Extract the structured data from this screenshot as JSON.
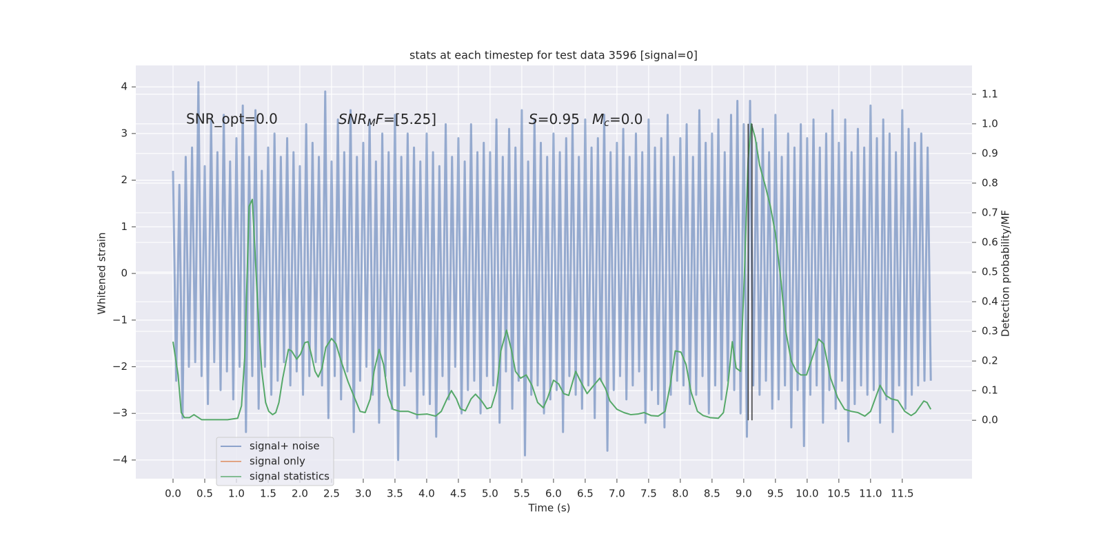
{
  "chart_data": {
    "type": "line",
    "title": "stats at each timestep for test data 3596 [signal=0]",
    "xlabel": "Time (s)",
    "ylabel": "Whitened strain",
    "y2label": "Detection probability/MF",
    "annotations": [
      {
        "text": "SNR_opt=0.0"
      },
      {
        "parts": [
          "SNR",
          "M",
          "F",
          "=[5.25]"
        ]
      },
      {
        "parts": [
          "S",
          "=0.95"
        ]
      },
      {
        "parts": [
          "M",
          "c",
          "=0.0"
        ]
      }
    ],
    "xlim": [
      -0.587,
      12.6
    ],
    "ylim": [
      -4.4,
      4.46
    ],
    "y2lim": [
      -0.197,
      1.197
    ],
    "xticks": [
      {
        "value": 0,
        "label": "0.0"
      },
      0.5,
      {
        "value": 1,
        "label": "1.0"
      },
      1.5,
      {
        "value": 2,
        "label": "2.0"
      },
      2.5,
      {
        "value": 3,
        "label": "3.0"
      },
      3.5,
      {
        "value": 4,
        "label": "4.0"
      },
      4.5,
      {
        "value": 5,
        "label": "5.0"
      },
      5.5,
      {
        "value": 6,
        "label": "6.0"
      },
      6.5,
      {
        "value": 7,
        "label": "7.0"
      },
      7.5,
      {
        "value": 8,
        "label": "8.0"
      },
      8.5,
      {
        "value": 9,
        "label": "9.0"
      },
      9.5,
      {
        "value": 10,
        "label": "10.0"
      },
      10.5,
      {
        "value": 11,
        "label": "11.0"
      },
      11.5
    ],
    "yticks": [
      {
        "value": -4,
        "label": "−4"
      },
      {
        "value": -3,
        "label": "−3"
      },
      {
        "value": -2,
        "label": "−2"
      },
      {
        "value": -1,
        "label": "−1"
      },
      0,
      1,
      2,
      3,
      4
    ],
    "y2ticks": [
      {
        "value": 0,
        "label": "0.0"
      },
      0.1,
      0.2,
      0.3,
      0.4,
      0.5,
      0.6,
      0.7,
      0.8,
      0.9,
      {
        "value": 1,
        "label": "1.0"
      },
      1.1
    ],
    "grid": true,
    "legend": "lower left",
    "vline_color": "#3a3a3a",
    "vlines": [
      {
        "x": 9.07,
        "ymin": 0,
        "ymax": 1
      },
      {
        "x": 9.13,
        "ymin": 0,
        "ymax": 1
      }
    ],
    "series": [
      {
        "name": "signal+ noise",
        "color": "#4c72b0",
        "alpha": 0.55,
        "axis": "y",
        "x": [
          0,
          0.05,
          0.1,
          0.15,
          0.2,
          0.25,
          0.3,
          0.35,
          0.4,
          0.45,
          0.5,
          0.55,
          0.6,
          0.65,
          0.7,
          0.75,
          0.8,
          0.85,
          0.9,
          0.95,
          1,
          1.05,
          1.1,
          1.15,
          1.2,
          1.25,
          1.3,
          1.35,
          1.4,
          1.45,
          1.5,
          1.55,
          1.6,
          1.65,
          1.7,
          1.75,
          1.8,
          1.85,
          1.9,
          1.95,
          2,
          2.05,
          2.1,
          2.15,
          2.2,
          2.25,
          2.3,
          2.35,
          2.4,
          2.45,
          2.5,
          2.55,
          2.6,
          2.65,
          2.7,
          2.75,
          2.8,
          2.85,
          2.9,
          2.95,
          3,
          3.05,
          3.1,
          3.15,
          3.2,
          3.25,
          3.3,
          3.35,
          3.4,
          3.45,
          3.5,
          3.55,
          3.6,
          3.65,
          3.7,
          3.75,
          3.8,
          3.85,
          3.9,
          3.95,
          4,
          4.05,
          4.1,
          4.15,
          4.2,
          4.25,
          4.3,
          4.35,
          4.4,
          4.45,
          4.5,
          4.55,
          4.6,
          4.65,
          4.7,
          4.75,
          4.8,
          4.85,
          4.9,
          4.95,
          5,
          5.05,
          5.1,
          5.15,
          5.2,
          5.25,
          5.3,
          5.35,
          5.4,
          5.45,
          5.5,
          5.55,
          5.6,
          5.65,
          5.7,
          5.75,
          5.8,
          5.85,
          5.9,
          5.95,
          6,
          6.05,
          6.1,
          6.15,
          6.2,
          6.25,
          6.3,
          6.35,
          6.4,
          6.45,
          6.5,
          6.55,
          6.6,
          6.65,
          6.7,
          6.75,
          6.8,
          6.85,
          6.9,
          6.95,
          7,
          7.05,
          7.1,
          7.15,
          7.2,
          7.25,
          7.3,
          7.35,
          7.4,
          7.45,
          7.5,
          7.55,
          7.6,
          7.65,
          7.7,
          7.75,
          7.8,
          7.85,
          7.9,
          7.95,
          8,
          8.05,
          8.1,
          8.15,
          8.2,
          8.25,
          8.3,
          8.35,
          8.4,
          8.45,
          8.5,
          8.55,
          8.6,
          8.65,
          8.7,
          8.75,
          8.8,
          8.85,
          8.9,
          8.95,
          9,
          9.05,
          9.1,
          9.15,
          9.2,
          9.25,
          9.3,
          9.35,
          9.4,
          9.45,
          9.5,
          9.55,
          9.6,
          9.65,
          9.7,
          9.75,
          9.8,
          9.85,
          9.9,
          9.95,
          10,
          10.05,
          10.1,
          10.15,
          10.2,
          10.25,
          10.3,
          10.35,
          10.4,
          10.45,
          10.5,
          10.55,
          10.6,
          10.65,
          10.7,
          10.75,
          10.8,
          10.85,
          10.9,
          10.95,
          11,
          11.05,
          11.1,
          11.15,
          11.2,
          11.25,
          11.3,
          11.35,
          11.4,
          11.45,
          11.5,
          11.55,
          11.6,
          11.65,
          11.7,
          11.75,
          11.8,
          11.85,
          11.9,
          11.95
        ],
        "values": [
          2.2,
          -2.3,
          1.9,
          -3.1,
          2.5,
          -2.0,
          2.7,
          -1.9,
          4.1,
          -2.2,
          2.3,
          -2.8,
          3.3,
          -1.9,
          2.6,
          -2.5,
          3.4,
          -2.1,
          2.4,
          -2.7,
          2.9,
          -2.0,
          3.6,
          -3.4,
          2.5,
          -2.2,
          3.5,
          -2.9,
          2.2,
          -2.0,
          2.7,
          -2.6,
          3.0,
          -2.3,
          2.5,
          -1.9,
          2.9,
          -2.4,
          2.6,
          -2.1,
          2.3,
          -2.6,
          3.2,
          -2.2,
          2.8,
          -1.9,
          2.5,
          -2.4,
          3.9,
          -3.1,
          2.4,
          -2.2,
          3.3,
          -2.7,
          2.6,
          -2.1,
          3.5,
          -3.4,
          2.5,
          -2.3,
          2.8,
          -2.0,
          3.3,
          -2.6,
          2.4,
          -3.2,
          3.0,
          -2.2,
          2.6,
          -2.9,
          3.4,
          -4.0,
          2.5,
          -2.4,
          3.0,
          -2.1,
          2.7,
          -3.1,
          2.4,
          -2.6,
          3.0,
          -2.8,
          2.6,
          -3.5,
          2.3,
          -2.2,
          3.2,
          -2.7,
          2.5,
          -2.0,
          2.9,
          -3.0,
          2.4,
          -2.5,
          3.2,
          -2.3,
          2.6,
          -3.0,
          2.8,
          -2.2,
          2.6,
          -2.4,
          3.3,
          -3.2,
          2.5,
          -2.1,
          3.1,
          -2.9,
          2.7,
          -2.3,
          3.5,
          -3.9,
          2.4,
          -2.6,
          3.3,
          -2.4,
          2.8,
          -3.0,
          2.5,
          -2.7,
          3.0,
          -2.5,
          2.6,
          -3.4,
          2.9,
          -2.2,
          3.2,
          -2.6,
          2.5,
          -2.9,
          3.3,
          -2.4,
          2.7,
          -3.1,
          2.9,
          -2.3,
          3.4,
          -3.8,
          2.6,
          -2.5,
          2.8,
          -2.2,
          3.1,
          -2.7,
          2.5,
          -2.4,
          3.0,
          -2.1,
          2.6,
          -3.2,
          3.3,
          -2.5,
          2.7,
          -2.8,
          2.9,
          -3.3,
          3.4,
          -2.6,
          2.5,
          -2.3,
          2.9,
          -2.4,
          3.2,
          -2.8,
          2.5,
          -2.6,
          3.5,
          -2.2,
          2.8,
          -3.0,
          3.0,
          -2.4,
          3.3,
          -2.7,
          2.6,
          -2.3,
          3.4,
          -2.5,
          3.7,
          -3.0,
          3.2,
          -3.5,
          3.7,
          -2.4,
          2.8,
          -2.6,
          3.1,
          -2.3,
          2.6,
          -2.9,
          3.4,
          -2.7,
          2.5,
          -2.4,
          3.0,
          -3.3,
          2.7,
          -2.5,
          3.2,
          -3.7,
          2.9,
          -2.6,
          3.3,
          -2.4,
          2.7,
          -3.2,
          3.0,
          -2.5,
          3.5,
          -2.9,
          2.8,
          -2.3,
          3.3,
          -3.6,
          2.6,
          -2.8,
          3.1,
          -2.4,
          2.7,
          -2.6,
          3.6,
          -2.5,
          2.9,
          -3.2,
          3.3,
          -2.7,
          3.0,
          -3.4,
          2.6,
          -2.4,
          3.5,
          -2.9,
          3.1,
          -2.6,
          2.8,
          -2.4,
          3.0,
          -2.3,
          2.7,
          -2.3
        ]
      },
      {
        "name": "signal only",
        "color": "#dd8452",
        "axis": "y"
      },
      {
        "name": "signal statistics",
        "color": "#55a868",
        "axis": "y2",
        "x": [
          0,
          0.08,
          0.13,
          0.18,
          0.26,
          0.33,
          0.45,
          0.64,
          0.86,
          1.02,
          1.08,
          1.13,
          1.2,
          1.25,
          1.29,
          1.35,
          1.4,
          1.46,
          1.51,
          1.57,
          1.62,
          1.67,
          1.73,
          1.82,
          1.87,
          1.95,
          2.01,
          2.08,
          2.13,
          2.18,
          2.24,
          2.29,
          2.35,
          2.41,
          2.5,
          2.57,
          2.65,
          2.76,
          2.87,
          2.95,
          3.03,
          3.11,
          3.17,
          3.25,
          3.32,
          3.39,
          3.47,
          3.58,
          3.71,
          3.85,
          4.01,
          4.14,
          4.23,
          4.32,
          4.39,
          4.47,
          4.53,
          4.61,
          4.7,
          4.77,
          4.86,
          4.95,
          5.02,
          5.1,
          5.17,
          5.26,
          5.34,
          5.4,
          5.48,
          5.57,
          5.66,
          5.75,
          5.84,
          5.91,
          6.0,
          6.08,
          6.16,
          6.24,
          6.35,
          6.43,
          6.53,
          6.62,
          6.73,
          6.82,
          6.89,
          7.0,
          7.11,
          7.22,
          7.33,
          7.43,
          7.54,
          7.65,
          7.76,
          7.84,
          7.92,
          8.01,
          8.09,
          8.17,
          8.27,
          8.36,
          8.47,
          8.6,
          8.68,
          8.75,
          8.82,
          8.88,
          8.95,
          9.01,
          9.07,
          9.12,
          9.18,
          9.25,
          9.34,
          9.42,
          9.5,
          9.59,
          9.66,
          9.75,
          9.83,
          9.9,
          9.99,
          10.1,
          10.18,
          10.26,
          10.37,
          10.48,
          10.59,
          10.7,
          10.8,
          10.91,
          11.0,
          11.08,
          11.15,
          11.24,
          11.33,
          11.43,
          11.54,
          11.64,
          11.71,
          11.84,
          11.89,
          11.95
        ],
        "values": [
          0.265,
          0.153,
          0.026,
          0.009,
          0.009,
          0.019,
          0.002,
          0.002,
          0.002,
          0.007,
          0.049,
          0.211,
          0.722,
          0.745,
          0.582,
          0.327,
          0.165,
          0.06,
          0.03,
          0.019,
          0.026,
          0.06,
          0.142,
          0.239,
          0.234,
          0.206,
          0.223,
          0.262,
          0.265,
          0.223,
          0.165,
          0.146,
          0.176,
          0.246,
          0.276,
          0.258,
          0.2,
          0.13,
          0.072,
          0.03,
          0.026,
          0.072,
          0.165,
          0.239,
          0.188,
          0.084,
          0.037,
          0.03,
          0.03,
          0.019,
          0.021,
          0.014,
          0.03,
          0.072,
          0.1,
          0.072,
          0.039,
          0.032,
          0.072,
          0.088,
          0.067,
          0.039,
          0.044,
          0.1,
          0.234,
          0.304,
          0.234,
          0.165,
          0.142,
          0.153,
          0.118,
          0.06,
          0.042,
          0.077,
          0.135,
          0.123,
          0.09,
          0.084,
          0.165,
          0.13,
          0.09,
          0.114,
          0.142,
          0.107,
          0.065,
          0.037,
          0.026,
          0.019,
          0.021,
          0.026,
          0.016,
          0.014,
          0.03,
          0.118,
          0.234,
          0.23,
          0.188,
          0.095,
          0.03,
          0.016,
          0.009,
          0.007,
          0.026,
          0.118,
          0.265,
          0.176,
          0.165,
          0.49,
          0.884,
          1.0,
          0.954,
          0.861,
          0.791,
          0.722,
          0.629,
          0.466,
          0.304,
          0.2,
          0.165,
          0.153,
          0.153,
          0.223,
          0.274,
          0.258,
          0.142,
          0.077,
          0.037,
          0.03,
          0.026,
          0.014,
          0.03,
          0.077,
          0.118,
          0.084,
          0.072,
          0.067,
          0.03,
          0.016,
          0.026,
          0.065,
          0.06,
          0.037
        ]
      }
    ]
  }
}
